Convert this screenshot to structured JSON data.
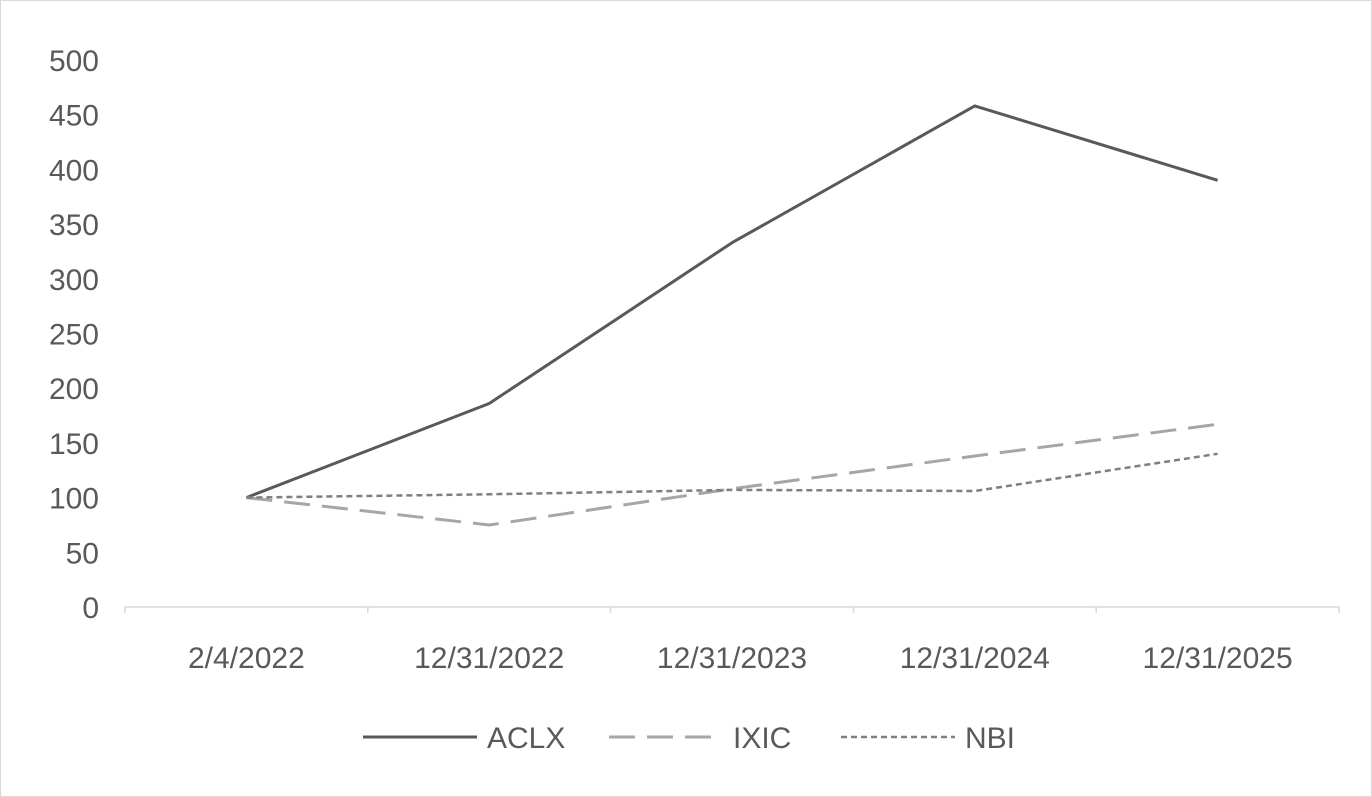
{
  "chart_data": {
    "type": "line",
    "title": "",
    "xlabel": "",
    "ylabel": "",
    "categories": [
      "2/4/2022",
      "12/31/2022",
      "12/31/2023",
      "12/31/2024",
      "12/31/2025"
    ],
    "ylim": [
      0,
      500
    ],
    "yticks": [
      0,
      50,
      100,
      150,
      200,
      250,
      300,
      350,
      400,
      450,
      500
    ],
    "grid": false,
    "legend_position": "bottom",
    "series": [
      {
        "name": "ACLX",
        "values": [
          100,
          186,
          333,
          458,
          390
        ],
        "color": "#595959",
        "dash": "solid"
      },
      {
        "name": "IXIC",
        "values": [
          100,
          75,
          108,
          138,
          167
        ],
        "color": "#a6a6a6",
        "dash": "dashed"
      },
      {
        "name": "NBI",
        "values": [
          100,
          103,
          107,
          106,
          140
        ],
        "color": "#7f7f7f",
        "dash": "dotted"
      }
    ]
  }
}
